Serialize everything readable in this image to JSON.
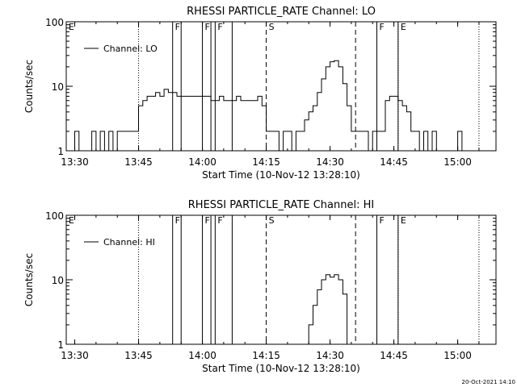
{
  "footer_timestamp": "20-Oct-2021 14:10",
  "chart_data": [
    {
      "type": "line",
      "title": "RHESSI PARTICLE_RATE Channel: LO",
      "xlabel": "Start Time (10-Nov-12 13:28:10)",
      "ylabel": "Counts/sec",
      "y_scale": "log",
      "ylim": [
        1,
        100
      ],
      "xlim": [
        "13:28",
        "15:09"
      ],
      "x_ticks": [
        "13:30",
        "13:45",
        "14:00",
        "14:15",
        "14:30",
        "14:45",
        "15:00"
      ],
      "y_ticks": [
        "1",
        "10",
        "100"
      ],
      "legend": {
        "placement": "top-left"
      },
      "series": [
        {
          "name": "Channel: LO",
          "x": [
            "13:28",
            "13:29",
            "13:30",
            "13:31",
            "13:32",
            "13:33",
            "13:34",
            "13:35",
            "13:36",
            "13:37",
            "13:38",
            "13:39",
            "13:40",
            "13:41",
            "13:42",
            "13:43",
            "13:44",
            "13:45",
            "13:46",
            "13:47",
            "13:48",
            "13:49",
            "13:50",
            "13:51",
            "13:52",
            "13:53",
            "13:54",
            "13:55",
            "13:56",
            "13:57",
            "13:58",
            "13:59",
            "14:00",
            "14:01",
            "14:02",
            "14:03",
            "14:04",
            "14:05",
            "14:06",
            "14:07",
            "14:08",
            "14:09",
            "14:10",
            "14:11",
            "14:12",
            "14:13",
            "14:14",
            "14:15",
            "14:16",
            "14:17",
            "14:18",
            "14:19",
            "14:20",
            "14:21",
            "14:22",
            "14:23",
            "14:24",
            "14:25",
            "14:26",
            "14:27",
            "14:28",
            "14:29",
            "14:30",
            "14:31",
            "14:32",
            "14:33",
            "14:34",
            "14:35",
            "14:36",
            "14:37",
            "14:38",
            "14:39",
            "14:40",
            "14:41",
            "14:42",
            "14:43",
            "14:44",
            "14:45",
            "14:46",
            "14:47",
            "14:48",
            "14:49",
            "14:50",
            "14:51",
            "14:52",
            "14:53",
            "14:54",
            "14:55",
            "14:56",
            "14:57",
            "14:58",
            "14:59",
            "15:00",
            "15:01",
            "15:02",
            "15:03"
          ],
          "values": [
            1,
            1,
            2,
            1,
            1,
            1,
            2,
            1,
            2,
            1,
            2,
            1,
            2,
            2,
            2,
            2,
            2,
            5,
            6,
            7,
            7,
            8,
            7,
            9,
            8,
            8,
            7,
            7,
            7,
            7,
            7,
            7,
            7,
            7,
            6,
            6,
            7,
            6,
            6,
            6,
            7,
            6,
            6,
            6,
            6,
            7,
            5,
            2,
            2,
            2,
            1,
            2,
            2,
            1,
            2,
            2,
            3,
            4,
            5,
            8,
            13,
            20,
            24,
            25,
            20,
            11,
            5,
            2,
            2,
            2,
            2,
            1,
            2,
            2,
            2,
            6,
            7,
            7,
            6,
            5,
            4,
            2,
            2,
            1,
            2,
            1,
            2,
            1,
            1,
            1,
            1,
            1,
            2,
            1,
            1,
            1
          ]
        }
      ],
      "markers": [
        {
          "time": "13:28",
          "style": "dotted",
          "label": "E"
        },
        {
          "time": "13:45",
          "style": "dotted",
          "label": ""
        },
        {
          "time": "13:53",
          "style": "solid",
          "label": "F"
        },
        {
          "time": "13:55",
          "style": "solid",
          "label": ""
        },
        {
          "time": "14:00",
          "style": "solid",
          "label": "F"
        },
        {
          "time": "14:02",
          "style": "solid",
          "label": ""
        },
        {
          "time": "14:03",
          "style": "solid",
          "label": "F"
        },
        {
          "time": "14:07",
          "style": "solid",
          "label": ""
        },
        {
          "time": "14:15",
          "style": "dashed",
          "label": "S"
        },
        {
          "time": "14:36",
          "style": "dashed",
          "label": ""
        },
        {
          "time": "14:41",
          "style": "solid",
          "label": "F"
        },
        {
          "time": "14:46",
          "style": "solid",
          "label": ""
        },
        {
          "time": "14:46",
          "style": "dotted",
          "label": "E"
        },
        {
          "time": "15:05",
          "style": "dotted",
          "label": ""
        }
      ]
    },
    {
      "type": "line",
      "title": "RHESSI PARTICLE_RATE Channel: HI",
      "xlabel": "Start Time (10-Nov-12 13:28:10)",
      "ylabel": "Counts/sec",
      "y_scale": "log",
      "ylim": [
        1,
        100
      ],
      "xlim": [
        "13:28",
        "15:09"
      ],
      "x_ticks": [
        "13:30",
        "13:45",
        "14:00",
        "14:15",
        "14:30",
        "14:45",
        "15:00"
      ],
      "y_ticks": [
        "1",
        "10",
        "100"
      ],
      "legend": {
        "placement": "top-left"
      },
      "series": [
        {
          "name": "Channel: HI",
          "x": [
            "14:24",
            "14:25",
            "14:26",
            "14:27",
            "14:28",
            "14:29",
            "14:30",
            "14:31",
            "14:32",
            "14:33",
            "14:34"
          ],
          "values": [
            1,
            2,
            4,
            7,
            10,
            12,
            11,
            12,
            10,
            6,
            1
          ]
        }
      ],
      "markers": [
        {
          "time": "13:28",
          "style": "dotted",
          "label": "E"
        },
        {
          "time": "13:45",
          "style": "dotted",
          "label": ""
        },
        {
          "time": "13:53",
          "style": "solid",
          "label": "F"
        },
        {
          "time": "13:55",
          "style": "solid",
          "label": ""
        },
        {
          "time": "14:00",
          "style": "solid",
          "label": "F"
        },
        {
          "time": "14:02",
          "style": "solid",
          "label": ""
        },
        {
          "time": "14:03",
          "style": "solid",
          "label": "F"
        },
        {
          "time": "14:07",
          "style": "solid",
          "label": ""
        },
        {
          "time": "14:15",
          "style": "dashed",
          "label": "S"
        },
        {
          "time": "14:36",
          "style": "dashed",
          "label": ""
        },
        {
          "time": "14:41",
          "style": "solid",
          "label": "F"
        },
        {
          "time": "14:46",
          "style": "solid",
          "label": ""
        },
        {
          "time": "14:46",
          "style": "dotted",
          "label": "E"
        },
        {
          "time": "15:05",
          "style": "dotted",
          "label": ""
        }
      ]
    }
  ]
}
